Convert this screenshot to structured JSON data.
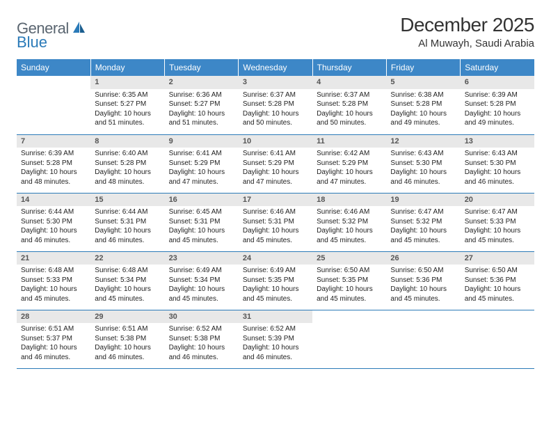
{
  "logo": {
    "text1": "General",
    "text2": "Blue"
  },
  "title": "December 2025",
  "location": "Al Muwayh, Saudi Arabia",
  "colors": {
    "header_bg": "#3d87c7",
    "border": "#2a7ab8",
    "daynum_bg": "#e8e8e8",
    "logo_gray": "#5a6570",
    "logo_blue": "#2a7ab8"
  },
  "weekdays": [
    "Sunday",
    "Monday",
    "Tuesday",
    "Wednesday",
    "Thursday",
    "Friday",
    "Saturday"
  ],
  "weeks": [
    [
      null,
      {
        "n": "1",
        "sr": "6:35 AM",
        "ss": "5:27 PM",
        "dl": "10 hours and 51 minutes."
      },
      {
        "n": "2",
        "sr": "6:36 AM",
        "ss": "5:27 PM",
        "dl": "10 hours and 51 minutes."
      },
      {
        "n": "3",
        "sr": "6:37 AM",
        "ss": "5:28 PM",
        "dl": "10 hours and 50 minutes."
      },
      {
        "n": "4",
        "sr": "6:37 AM",
        "ss": "5:28 PM",
        "dl": "10 hours and 50 minutes."
      },
      {
        "n": "5",
        "sr": "6:38 AM",
        "ss": "5:28 PM",
        "dl": "10 hours and 49 minutes."
      },
      {
        "n": "6",
        "sr": "6:39 AM",
        "ss": "5:28 PM",
        "dl": "10 hours and 49 minutes."
      }
    ],
    [
      {
        "n": "7",
        "sr": "6:39 AM",
        "ss": "5:28 PM",
        "dl": "10 hours and 48 minutes."
      },
      {
        "n": "8",
        "sr": "6:40 AM",
        "ss": "5:28 PM",
        "dl": "10 hours and 48 minutes."
      },
      {
        "n": "9",
        "sr": "6:41 AM",
        "ss": "5:29 PM",
        "dl": "10 hours and 47 minutes."
      },
      {
        "n": "10",
        "sr": "6:41 AM",
        "ss": "5:29 PM",
        "dl": "10 hours and 47 minutes."
      },
      {
        "n": "11",
        "sr": "6:42 AM",
        "ss": "5:29 PM",
        "dl": "10 hours and 47 minutes."
      },
      {
        "n": "12",
        "sr": "6:43 AM",
        "ss": "5:30 PM",
        "dl": "10 hours and 46 minutes."
      },
      {
        "n": "13",
        "sr": "6:43 AM",
        "ss": "5:30 PM",
        "dl": "10 hours and 46 minutes."
      }
    ],
    [
      {
        "n": "14",
        "sr": "6:44 AM",
        "ss": "5:30 PM",
        "dl": "10 hours and 46 minutes."
      },
      {
        "n": "15",
        "sr": "6:44 AM",
        "ss": "5:31 PM",
        "dl": "10 hours and 46 minutes."
      },
      {
        "n": "16",
        "sr": "6:45 AM",
        "ss": "5:31 PM",
        "dl": "10 hours and 45 minutes."
      },
      {
        "n": "17",
        "sr": "6:46 AM",
        "ss": "5:31 PM",
        "dl": "10 hours and 45 minutes."
      },
      {
        "n": "18",
        "sr": "6:46 AM",
        "ss": "5:32 PM",
        "dl": "10 hours and 45 minutes."
      },
      {
        "n": "19",
        "sr": "6:47 AM",
        "ss": "5:32 PM",
        "dl": "10 hours and 45 minutes."
      },
      {
        "n": "20",
        "sr": "6:47 AM",
        "ss": "5:33 PM",
        "dl": "10 hours and 45 minutes."
      }
    ],
    [
      {
        "n": "21",
        "sr": "6:48 AM",
        "ss": "5:33 PM",
        "dl": "10 hours and 45 minutes."
      },
      {
        "n": "22",
        "sr": "6:48 AM",
        "ss": "5:34 PM",
        "dl": "10 hours and 45 minutes."
      },
      {
        "n": "23",
        "sr": "6:49 AM",
        "ss": "5:34 PM",
        "dl": "10 hours and 45 minutes."
      },
      {
        "n": "24",
        "sr": "6:49 AM",
        "ss": "5:35 PM",
        "dl": "10 hours and 45 minutes."
      },
      {
        "n": "25",
        "sr": "6:50 AM",
        "ss": "5:35 PM",
        "dl": "10 hours and 45 minutes."
      },
      {
        "n": "26",
        "sr": "6:50 AM",
        "ss": "5:36 PM",
        "dl": "10 hours and 45 minutes."
      },
      {
        "n": "27",
        "sr": "6:50 AM",
        "ss": "5:36 PM",
        "dl": "10 hours and 45 minutes."
      }
    ],
    [
      {
        "n": "28",
        "sr": "6:51 AM",
        "ss": "5:37 PM",
        "dl": "10 hours and 46 minutes."
      },
      {
        "n": "29",
        "sr": "6:51 AM",
        "ss": "5:38 PM",
        "dl": "10 hours and 46 minutes."
      },
      {
        "n": "30",
        "sr": "6:52 AM",
        "ss": "5:38 PM",
        "dl": "10 hours and 46 minutes."
      },
      {
        "n": "31",
        "sr": "6:52 AM",
        "ss": "5:39 PM",
        "dl": "10 hours and 46 minutes."
      },
      null,
      null,
      null
    ]
  ],
  "labels": {
    "sunrise": "Sunrise:",
    "sunset": "Sunset:",
    "daylight": "Daylight:"
  }
}
